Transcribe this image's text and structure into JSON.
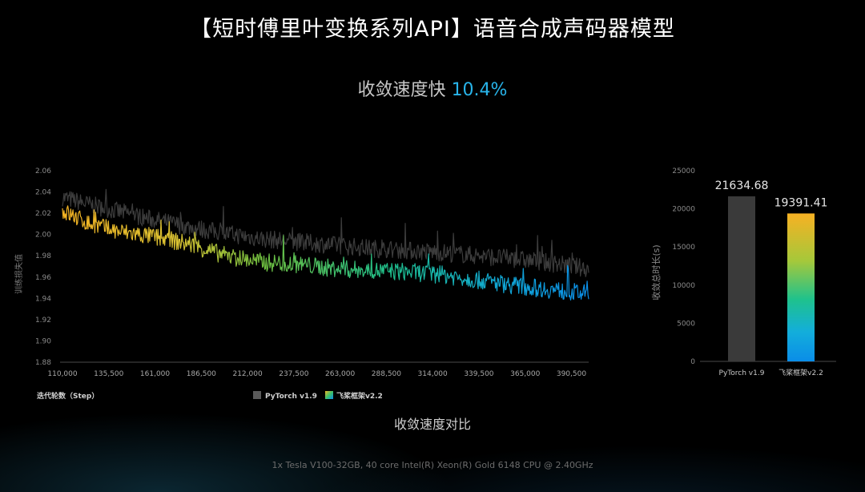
{
  "page": {
    "title": "【短时傅里叶变换系列API】语音合成声码器模型",
    "subtitle_prefix": "收敛速度快",
    "subtitle_value": "10.4%",
    "chart_caption": "收敛速度对比",
    "footnote": "1x Tesla V100-32GB, 40 core Intel(R) Xeon(R) Gold 6148 CPU @ 2.40GHz"
  },
  "colors": {
    "pytorch": "#3c3c3c",
    "paddle_gradient": [
      "#f2b424",
      "#5cb848",
      "#19c39a",
      "#0a8de8"
    ],
    "accent": "#28b4ea"
  },
  "chart_data": [
    {
      "type": "line",
      "ylabel": "训练损失值",
      "xlabel": "迭代轮数（Step）",
      "xlim": [
        110000,
        400000
      ],
      "ylim": [
        1.88,
        2.06
      ],
      "x_ticks": [
        110000,
        135500,
        161000,
        186500,
        212000,
        237500,
        263000,
        288500,
        314000,
        339500,
        365000,
        390500
      ],
      "x_tick_labels": [
        "110,000",
        "135,500",
        "161,000",
        "186,500",
        "212,000",
        "237,500",
        "263,000",
        "288,500",
        "314,000",
        "339,500",
        "365,000",
        "390,500"
      ],
      "y_ticks": [
        1.88,
        1.9,
        1.92,
        1.94,
        1.96,
        1.98,
        2.0,
        2.02,
        2.04,
        2.06
      ],
      "y_tick_labels": [
        "1.88",
        "1.90",
        "1.92",
        "1.94",
        "1.96",
        "1.98",
        "2.00",
        "2.02",
        "2.04",
        "2.06"
      ],
      "legend_position": "bottom",
      "series": [
        {
          "name": "PyTorch v1.9",
          "x": [
            110000,
            125000,
            140000,
            160000,
            180000,
            200000,
            220000,
            240000,
            260000,
            280000,
            300000,
            320000,
            340000,
            360000,
            380000,
            400000
          ],
          "values": [
            2.035,
            2.028,
            2.022,
            2.014,
            2.007,
            2.001,
            1.996,
            1.993,
            1.99,
            1.987,
            1.985,
            1.983,
            1.98,
            1.977,
            1.973,
            1.968
          ]
        },
        {
          "name": "飞桨框架v2.2",
          "x": [
            110000,
            125000,
            140000,
            160000,
            180000,
            200000,
            220000,
            240000,
            260000,
            280000,
            300000,
            320000,
            340000,
            360000,
            380000,
            400000
          ],
          "values": [
            2.022,
            2.01,
            2.003,
            1.998,
            1.991,
            1.98,
            1.974,
            1.972,
            1.968,
            1.966,
            1.965,
            1.962,
            1.957,
            1.952,
            1.948,
            1.944
          ]
        }
      ]
    },
    {
      "type": "bar",
      "ylabel": "收敛总时长(s)",
      "categories": [
        "PyTorch v1.9",
        "飞桨框架v2.2"
      ],
      "values": [
        21634.68,
        19391.41
      ],
      "value_labels": [
        "21634.68",
        "19391.41"
      ],
      "ylim": [
        0,
        25000
      ],
      "y_ticks": [
        0,
        5000,
        10000,
        15000,
        20000,
        25000
      ],
      "y_tick_labels": [
        "0",
        "5000",
        "10000",
        "15000",
        "20000",
        "25000"
      ]
    }
  ]
}
